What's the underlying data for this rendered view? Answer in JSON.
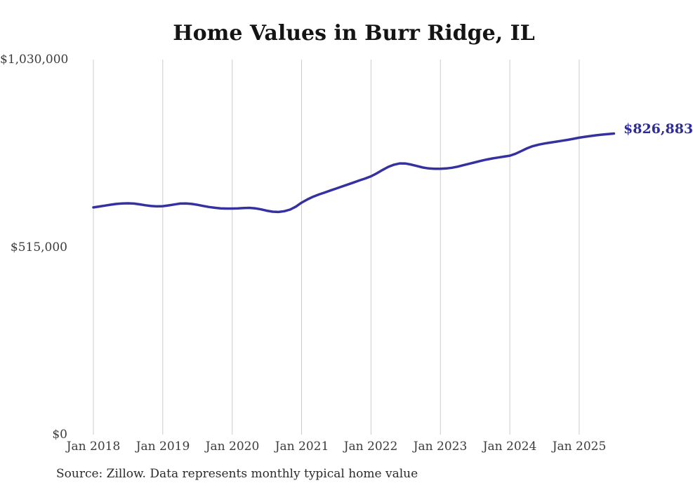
{
  "title": "Home Values in Burr Ridge, IL",
  "source_note": "Source: Zillow. Data represents monthly typical home value",
  "end_label": "$826,883",
  "colors": {
    "line": "#35319f",
    "end_label": "#2d2b9e",
    "gridline": "#cccccc",
    "tick_text": "#3c3c3c",
    "title_text": "#141414"
  },
  "chart_data": {
    "type": "line",
    "title": "Home Values in Burr Ridge, IL",
    "xlabel": "",
    "ylabel": "",
    "ylim": [
      0,
      1030000
    ],
    "grid": "vertical-yearly-gridlines",
    "legend": "none",
    "y_ticks": [
      {
        "value": 0,
        "label": "$0"
      },
      {
        "value": 515000,
        "label": "$515,000"
      },
      {
        "value": 1030000,
        "label": "$1,030,000"
      }
    ],
    "x_tick_labels": [
      "Jan 2018",
      "Jan 2019",
      "Jan 2020",
      "Jan 2021",
      "Jan 2022",
      "Jan 2023",
      "Jan 2024",
      "Jan 2025"
    ],
    "end_label": "$826,883",
    "source": "Source: Zillow. Data represents monthly typical home value",
    "series": [
      {
        "name": "Monthly typical home value",
        "color": "#35319f",
        "months": [
          "2018-01",
          "2018-02",
          "2018-03",
          "2018-04",
          "2018-05",
          "2018-06",
          "2018-07",
          "2018-08",
          "2018-09",
          "2018-10",
          "2018-11",
          "2018-12",
          "2019-01",
          "2019-02",
          "2019-03",
          "2019-04",
          "2019-05",
          "2019-06",
          "2019-07",
          "2019-08",
          "2019-09",
          "2019-10",
          "2019-11",
          "2019-12",
          "2020-01",
          "2020-02",
          "2020-03",
          "2020-04",
          "2020-05",
          "2020-06",
          "2020-07",
          "2020-08",
          "2020-09",
          "2020-10",
          "2020-11",
          "2020-12",
          "2021-01",
          "2021-02",
          "2021-03",
          "2021-04",
          "2021-05",
          "2021-06",
          "2021-07",
          "2021-08",
          "2021-09",
          "2021-10",
          "2021-11",
          "2021-12",
          "2022-01",
          "2022-02",
          "2022-03",
          "2022-04",
          "2022-05",
          "2022-06",
          "2022-07",
          "2022-08",
          "2022-09",
          "2022-10",
          "2022-11",
          "2022-12",
          "2023-01",
          "2023-02",
          "2023-03",
          "2023-04",
          "2023-05",
          "2023-06",
          "2023-07",
          "2023-08",
          "2023-09",
          "2023-10",
          "2023-11",
          "2023-12",
          "2024-01",
          "2024-02",
          "2024-03",
          "2024-04",
          "2024-05",
          "2024-06",
          "2024-07",
          "2024-08",
          "2024-09",
          "2024-10",
          "2024-11",
          "2024-12",
          "2025-01",
          "2025-02",
          "2025-03",
          "2025-04",
          "2025-05",
          "2025-06",
          "2025-07"
        ],
        "values": [
          624000,
          626500,
          629000,
          631500,
          633500,
          634800,
          635300,
          634500,
          632500,
          630000,
          627800,
          626800,
          627500,
          629500,
          632000,
          634500,
          635000,
          633500,
          631000,
          628000,
          625200,
          623000,
          621500,
          620800,
          620800,
          621500,
          622500,
          622800,
          621500,
          618500,
          615000,
          612200,
          611500,
          613500,
          618000,
          626000,
          637000,
          646000,
          653500,
          659500,
          665000,
          670500,
          676000,
          681500,
          687000,
          692500,
          698000,
          703500,
          709500,
          717500,
          727000,
          735500,
          741500,
          744800,
          744500,
          741500,
          737500,
          733500,
          731000,
          730000,
          730000,
          731000,
          733000,
          736000,
          740000,
          744000,
          748000,
          752000,
          755500,
          758500,
          761000,
          763500,
          766000,
          771500,
          779000,
          786500,
          792500,
          796500,
          799500,
          802000,
          804500,
          807000,
          809500,
          812500,
          815500,
          818000,
          820200,
          822200,
          824000,
          825600,
          826883
        ]
      }
    ]
  }
}
